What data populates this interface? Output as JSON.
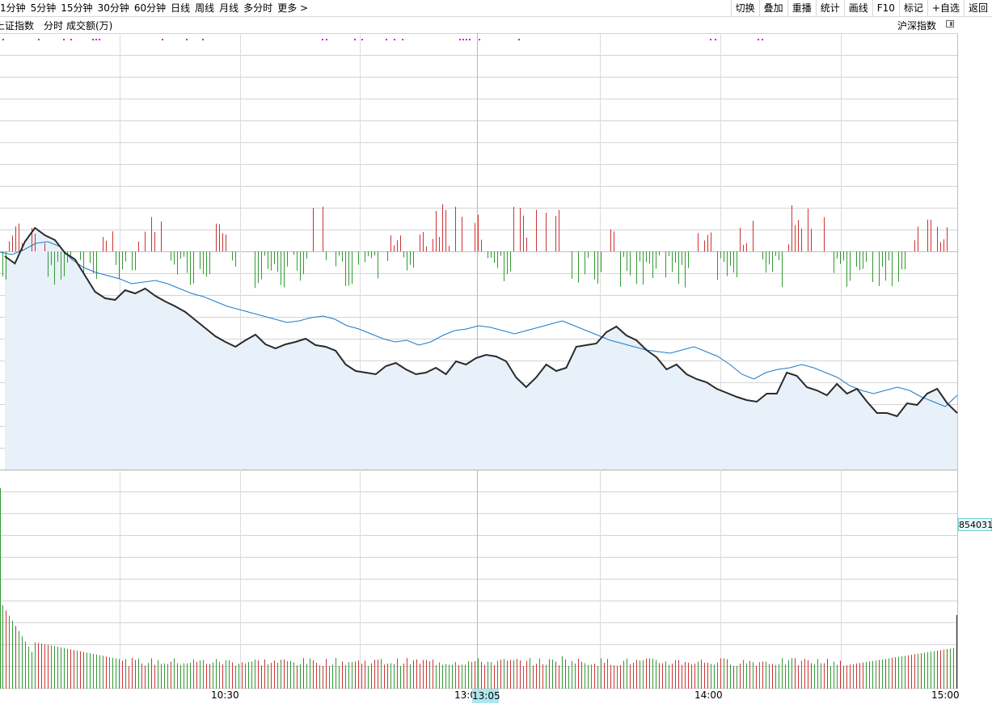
{
  "toolbar": {
    "periods": [
      "1分钟",
      "5分钟",
      "15分钟",
      "30分钟",
      "60分钟",
      "日线",
      "周线",
      "月线",
      "多分时",
      "更多 >"
    ],
    "tools": [
      "切换",
      "叠加",
      "重播",
      "统计",
      "画线",
      "F10",
      "标记",
      "+自选",
      "返回"
    ]
  },
  "info": {
    "index_name": "上证指数",
    "chart_mode": "分时",
    "volume_label": "成交额(万)",
    "market_selector": "沪深指数"
  },
  "volume_readout": "854031",
  "cursor_time": "13:05",
  "chart_data": {
    "type": "line",
    "x_labels": [
      "10:30",
      "13:00",
      "14:00",
      "15:00"
    ],
    "series": [
      {
        "name": "",
        "color": "#2a2a2a",
        "values": [
          -6,
          -15,
          12,
          29,
          20,
          14,
          -2,
          -10,
          -30,
          -50,
          -58,
          -60,
          -48,
          -52,
          -46,
          -55,
          -62,
          -68,
          -75,
          -85,
          -95,
          -105,
          -112,
          -118,
          -110,
          -103,
          -115,
          -120,
          -115,
          -112,
          -108,
          -116,
          -118,
          -123,
          -140,
          -148,
          -150,
          -152,
          -142,
          -138,
          -146,
          -152,
          -150,
          -144,
          -152,
          -136,
          -140,
          -132,
          -128,
          -130,
          -136,
          -156,
          -168,
          -156,
          -140,
          -148,
          -144,
          -118,
          -116,
          -114,
          -100,
          -93,
          -104,
          -110,
          -122,
          -131,
          -146,
          -140,
          -152,
          -158,
          -162,
          -170,
          -175,
          -180,
          -184,
          -186,
          -176,
          -176,
          -150,
          -154,
          -168,
          -172,
          -178,
          -164,
          -176,
          -170,
          -186,
          -200,
          -200,
          -204,
          -188,
          -190,
          -176,
          -170,
          -188,
          -200
        ]
      },
      {
        "name": "",
        "color": "#1e7ac9",
        "values": [
          -1,
          -4,
          2,
          10,
          12,
          6,
          -10,
          -20,
          -26,
          -30,
          -34,
          -40,
          -38,
          -36,
          -40,
          -46,
          -52,
          -56,
          -62,
          -68,
          -72,
          -76,
          -80,
          -84,
          -88,
          -86,
          -82,
          -80,
          -84,
          -92,
          -96,
          -102,
          -108,
          -112,
          -110,
          -116,
          -112,
          -104,
          -98,
          -96,
          -92,
          -94,
          -98,
          -102,
          -98,
          -94,
          -90,
          -86,
          -92,
          -98,
          -104,
          -110,
          -114,
          -118,
          -122,
          -124,
          -126,
          -122,
          -118,
          -124,
          -130,
          -140,
          -152,
          -158,
          -150,
          -146,
          -144,
          -140,
          -144,
          -150,
          -156,
          -166,
          -172,
          -176,
          -172,
          -168,
          -172,
          -180,
          -186,
          -192,
          -178
        ]
      }
    ],
    "volume": {
      "name": "成交额(万)",
      "colors": {
        "up": "#cc3333",
        "down": "#339933"
      }
    }
  },
  "colors": {
    "up": "#cc3333",
    "down": "#339933",
    "price": "#2a2a2a",
    "avg": "#1e7ac9",
    "dot": "#cc22cc",
    "fill": "#e8f0f9"
  }
}
